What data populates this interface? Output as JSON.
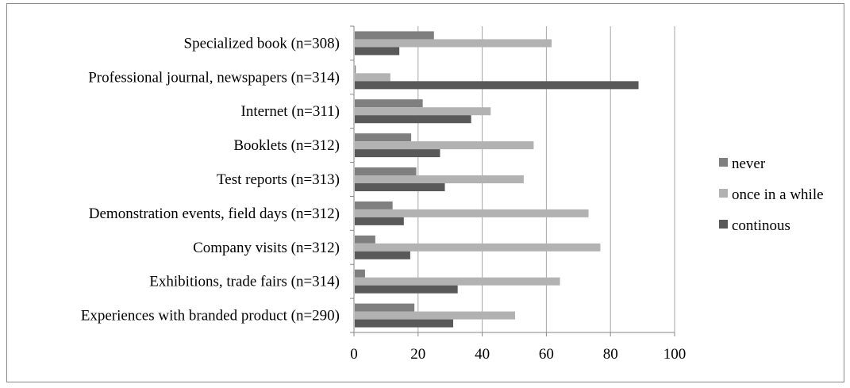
{
  "chart_data": {
    "type": "bar",
    "orientation": "horizontal",
    "categories": [
      "Specialized book (n=308)",
      "Professional journal, newspapers (n=314)",
      "Internet (n=311)",
      "Booklets (n=312)",
      "Test reports (n=313)",
      "Demonstration events, field days (n=312)",
      "Company visits (n=312)",
      "Exhibitions, trade fairs (n=314)",
      "Experiences with branded product (n=290)"
    ],
    "series": [
      {
        "name": "never",
        "color": "#7f7f7f",
        "values": [
          24.7,
          0.3,
          21.2,
          17.6,
          19.2,
          11.8,
          6.4,
          3.2,
          18.6
        ]
      },
      {
        "name": "once in a while",
        "color": "#b2b2b2",
        "values": [
          61.4,
          11.1,
          42.4,
          55.8,
          52.7,
          72.9,
          76.6,
          64.0,
          50.0
        ]
      },
      {
        "name": "continous",
        "color": "#595959",
        "values": [
          13.9,
          88.5,
          36.3,
          26.6,
          28.1,
          15.3,
          17.3,
          32.1,
          30.7
        ]
      }
    ],
    "xlim": [
      0,
      100
    ],
    "xticks": [
      0,
      20,
      40,
      60,
      80,
      100
    ],
    "title": "",
    "xlabel": "",
    "ylabel": "",
    "grid": "vertical",
    "legend_position": "right"
  }
}
